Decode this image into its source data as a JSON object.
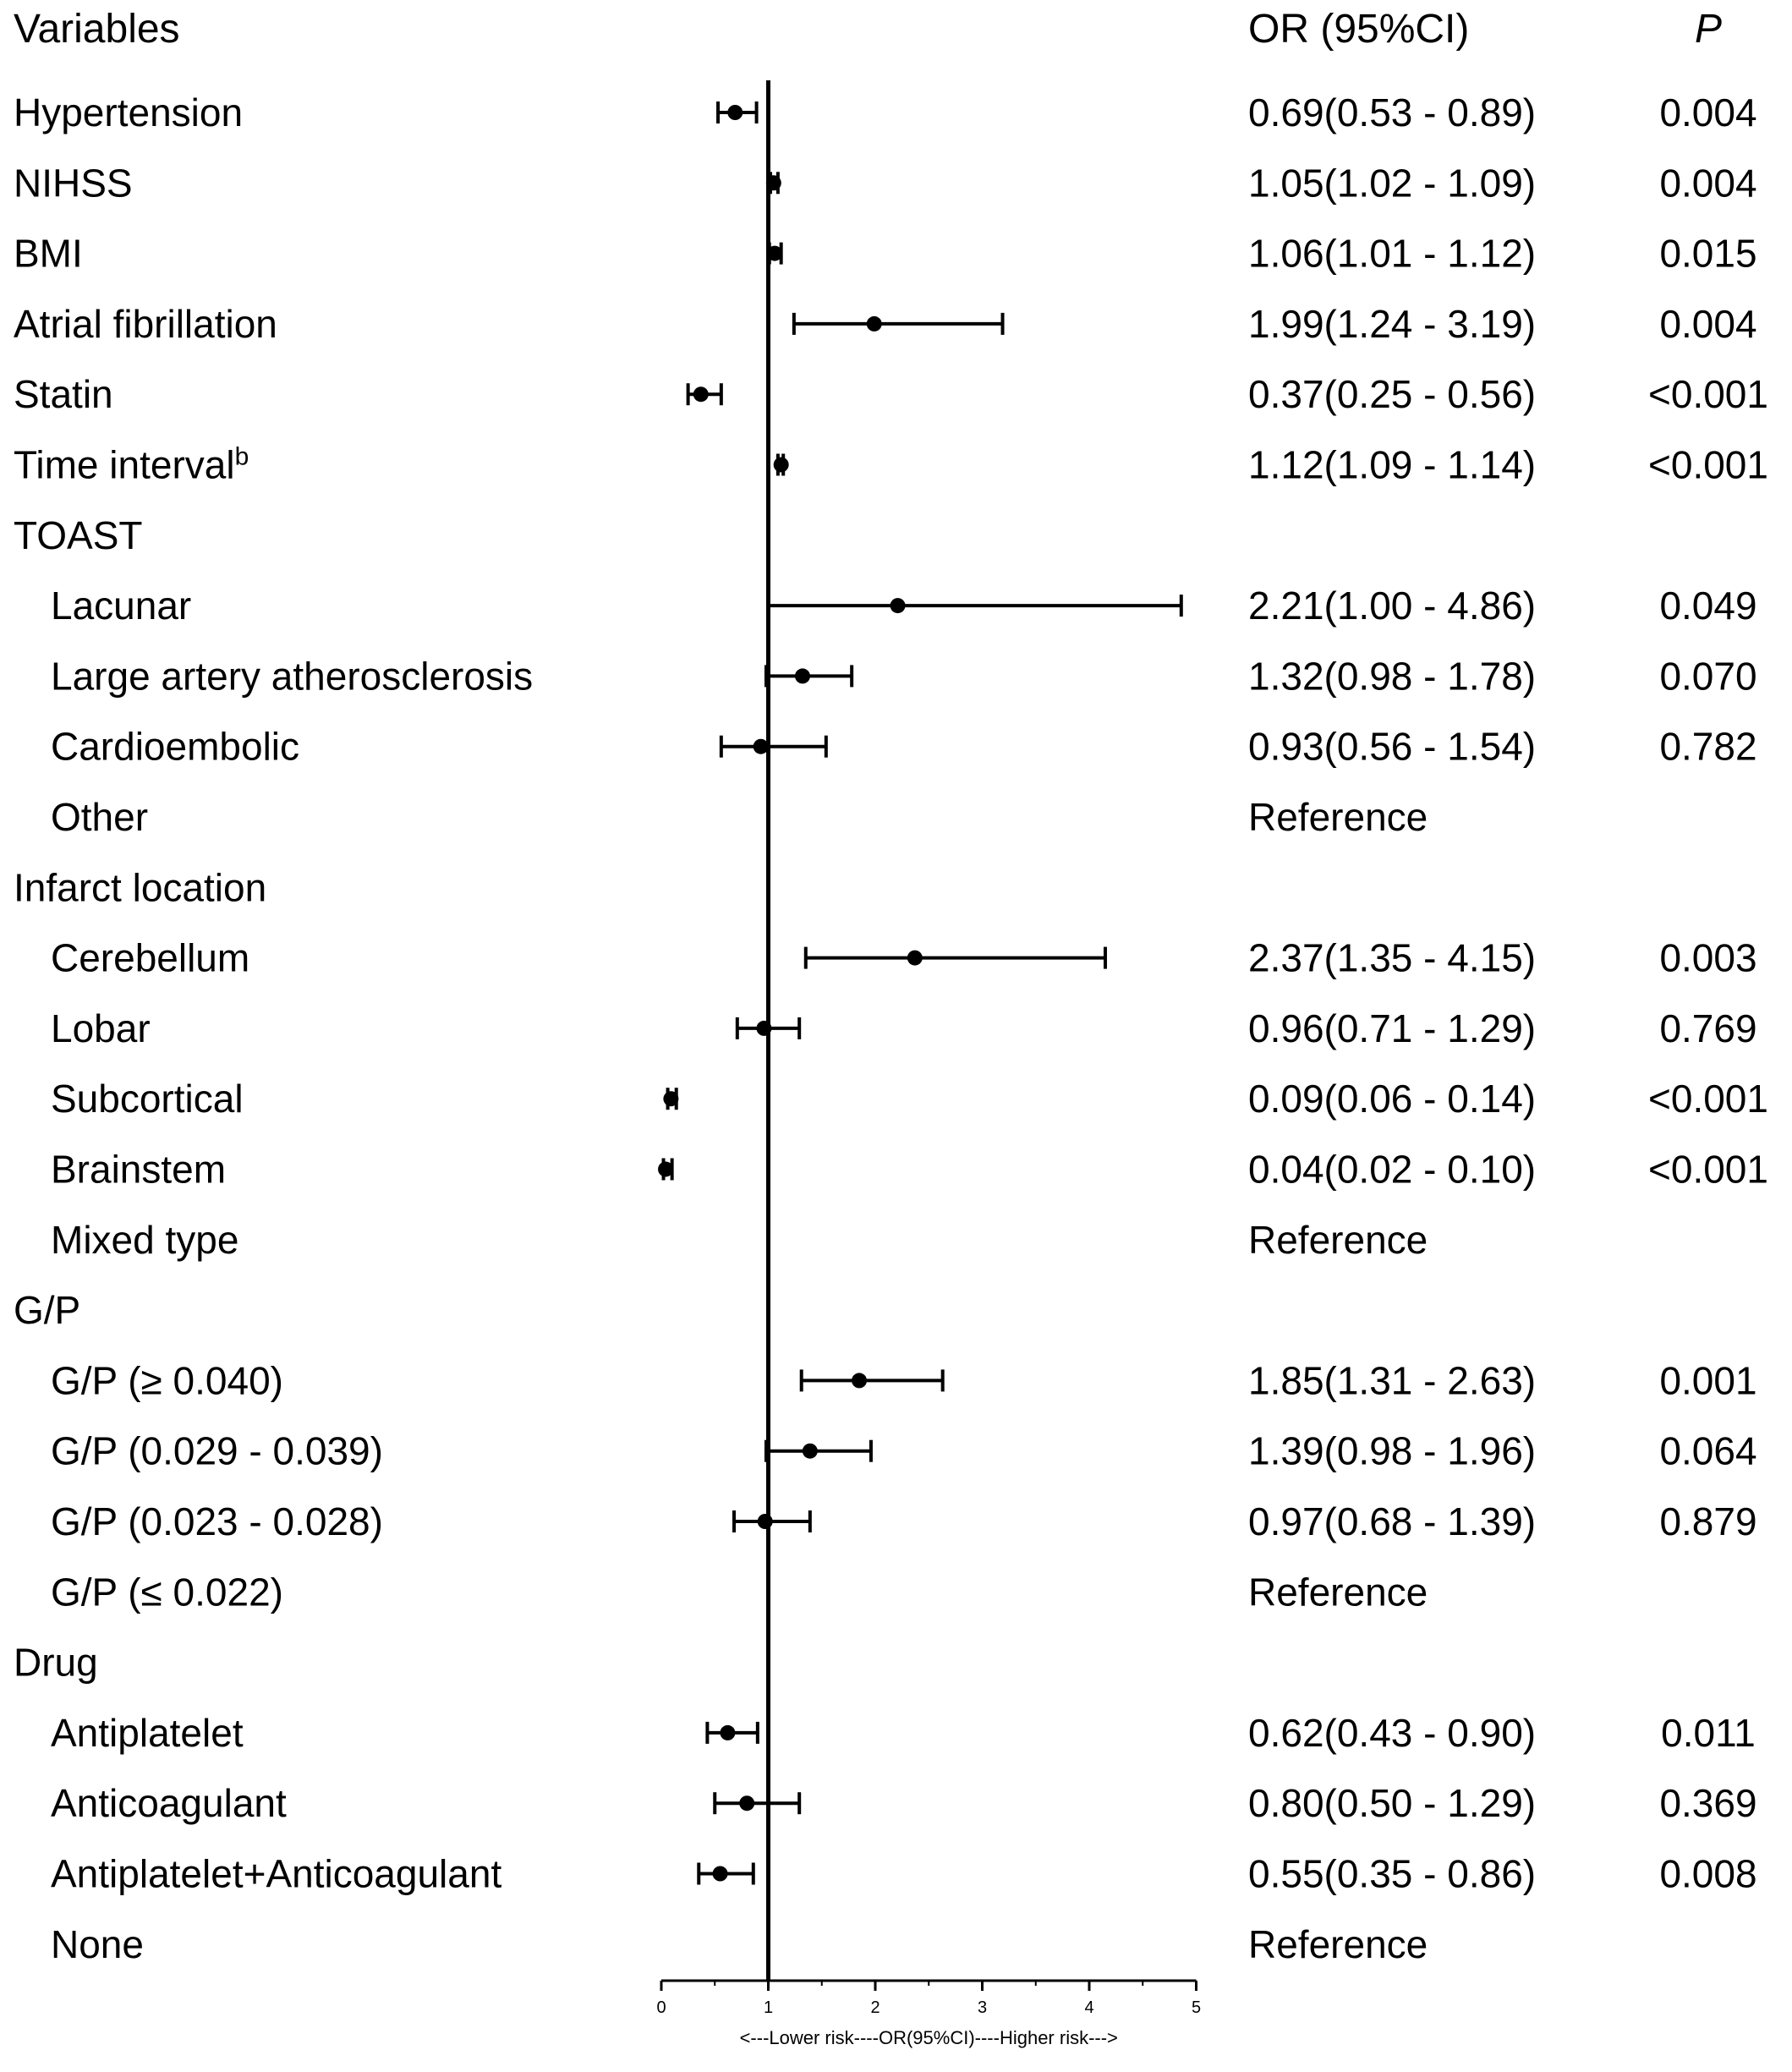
{
  "chart_data": {
    "type": "forest",
    "headers": {
      "variables": "Variables",
      "or": "OR (95%CI)",
      "p": "P"
    },
    "xlabel": "<---Lower risk----OR(95%CI)----Higher risk--->",
    "xlim": [
      0,
      5
    ],
    "ticks": [
      0,
      1,
      2,
      3,
      4,
      5
    ],
    "reference_line": 1,
    "rows": [
      {
        "label": "Hypertension",
        "sup": "",
        "indent": 0,
        "or": 0.69,
        "lo": 0.53,
        "hi": 0.89,
        "or_text": "0.69(0.53 - 0.89)",
        "p": "0.004"
      },
      {
        "label": "NIHSS",
        "sup": "",
        "indent": 0,
        "or": 1.05,
        "lo": 1.02,
        "hi": 1.09,
        "or_text": "1.05(1.02 - 1.09)",
        "p": "0.004"
      },
      {
        "label": "BMI",
        "sup": "",
        "indent": 0,
        "or": 1.06,
        "lo": 1.01,
        "hi": 1.12,
        "or_text": "1.06(1.01 - 1.12)",
        "p": "0.015"
      },
      {
        "label": "Atrial fibrillation",
        "sup": "",
        "indent": 0,
        "or": 1.99,
        "lo": 1.24,
        "hi": 3.19,
        "or_text": "1.99(1.24 - 3.19)",
        "p": "0.004"
      },
      {
        "label": "Statin",
        "sup": "",
        "indent": 0,
        "or": 0.37,
        "lo": 0.25,
        "hi": 0.56,
        "or_text": "0.37(0.25 - 0.56)",
        "p": "<0.001"
      },
      {
        "label": "Time interval",
        "sup": "b",
        "indent": 0,
        "or": 1.12,
        "lo": 1.09,
        "hi": 1.14,
        "or_text": "1.12(1.09 - 1.14)",
        "p": "<0.001"
      },
      {
        "label": "TOAST",
        "sup": "",
        "indent": 0,
        "or": null,
        "lo": null,
        "hi": null,
        "or_text": "",
        "p": ""
      },
      {
        "label": "Lacunar",
        "sup": "",
        "indent": 1,
        "or": 2.21,
        "lo": 1.0,
        "hi": 4.86,
        "or_text": "2.21(1.00 - 4.86)",
        "p": "0.049"
      },
      {
        "label": "Large artery atherosclerosis",
        "sup": "",
        "indent": 1,
        "or": 1.32,
        "lo": 0.98,
        "hi": 1.78,
        "or_text": "1.32(0.98 - 1.78)",
        "p": "0.070"
      },
      {
        "label": "Cardioembolic",
        "sup": "",
        "indent": 1,
        "or": 0.93,
        "lo": 0.56,
        "hi": 1.54,
        "or_text": "0.93(0.56 - 1.54)",
        "p": "0.782"
      },
      {
        "label": "Other",
        "sup": "",
        "indent": 1,
        "or": null,
        "lo": null,
        "hi": null,
        "or_text": "Reference",
        "p": ""
      },
      {
        "label": "Infarct location",
        "sup": "",
        "indent": 0,
        "or": null,
        "lo": null,
        "hi": null,
        "or_text": "",
        "p": ""
      },
      {
        "label": "Cerebellum",
        "sup": "",
        "indent": 1,
        "or": 2.37,
        "lo": 1.35,
        "hi": 4.15,
        "or_text": "2.37(1.35 - 4.15)",
        "p": "0.003"
      },
      {
        "label": "Lobar",
        "sup": "",
        "indent": 1,
        "or": 0.96,
        "lo": 0.71,
        "hi": 1.29,
        "or_text": "0.96(0.71 - 1.29)",
        "p": "0.769"
      },
      {
        "label": "Subcortical",
        "sup": "",
        "indent": 1,
        "or": 0.09,
        "lo": 0.06,
        "hi": 0.14,
        "or_text": "0.09(0.06 - 0.14)",
        "p": "<0.001"
      },
      {
        "label": "Brainstem",
        "sup": "",
        "indent": 1,
        "or": 0.04,
        "lo": 0.02,
        "hi": 0.1,
        "or_text": "0.04(0.02 - 0.10)",
        "p": "<0.001"
      },
      {
        "label": "Mixed type",
        "sup": "",
        "indent": 1,
        "or": null,
        "lo": null,
        "hi": null,
        "or_text": "Reference",
        "p": ""
      },
      {
        "label": "G/P",
        "sup": "",
        "indent": 0,
        "or": null,
        "lo": null,
        "hi": null,
        "or_text": "",
        "p": ""
      },
      {
        "label": "G/P (≥ 0.040)",
        "sup": "",
        "indent": 1,
        "or": 1.85,
        "lo": 1.31,
        "hi": 2.63,
        "or_text": "1.85(1.31 - 2.63)",
        "p": "0.001"
      },
      {
        "label": "G/P (0.029 - 0.039)",
        "sup": "",
        "indent": 1,
        "or": 1.39,
        "lo": 0.98,
        "hi": 1.96,
        "or_text": "1.39(0.98 - 1.96)",
        "p": "0.064"
      },
      {
        "label": "G/P (0.023 - 0.028)",
        "sup": "",
        "indent": 1,
        "or": 0.97,
        "lo": 0.68,
        "hi": 1.39,
        "or_text": "0.97(0.68 - 1.39)",
        "p": "0.879"
      },
      {
        "label": "G/P (≤ 0.022)",
        "sup": "",
        "indent": 1,
        "or": null,
        "lo": null,
        "hi": null,
        "or_text": "Reference",
        "p": ""
      },
      {
        "label": "Drug",
        "sup": "",
        "indent": 0,
        "or": null,
        "lo": null,
        "hi": null,
        "or_text": "",
        "p": ""
      },
      {
        "label": "Antiplatelet",
        "sup": "",
        "indent": 1,
        "or": 0.62,
        "lo": 0.43,
        "hi": 0.9,
        "or_text": "0.62(0.43 - 0.90)",
        "p": "0.011"
      },
      {
        "label": "Anticoagulant",
        "sup": "",
        "indent": 1,
        "or": 0.8,
        "lo": 0.5,
        "hi": 1.29,
        "or_text": "0.80(0.50 - 1.29)",
        "p": "0.369"
      },
      {
        "label": "Antiplatelet+Anticoagulant",
        "sup": "",
        "indent": 1,
        "or": 0.55,
        "lo": 0.35,
        "hi": 0.86,
        "or_text": "0.55(0.35 - 0.86)",
        "p": "0.008"
      },
      {
        "label": "None",
        "sup": "",
        "indent": 1,
        "or": null,
        "lo": null,
        "hi": null,
        "or_text": "Reference",
        "p": ""
      }
    ]
  }
}
